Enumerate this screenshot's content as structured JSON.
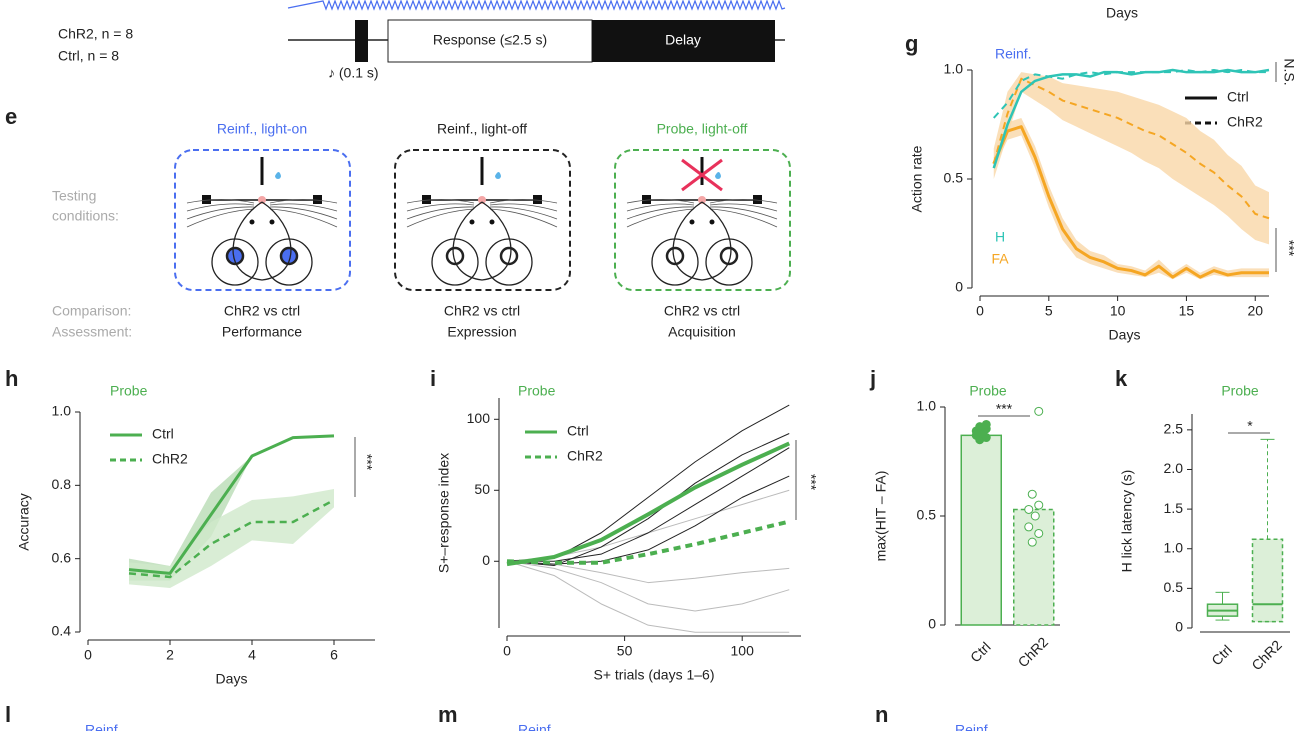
{
  "header": {
    "groups": [
      "ChR2, n = 8",
      "Ctrl, n = 8"
    ],
    "response": "Response (≤2.5 s)",
    "delay": "Delay",
    "tone": "♪ (0.1 s)",
    "days": "Days"
  },
  "panel_e": {
    "label": "e",
    "testing": [
      "Testing",
      "conditions:"
    ],
    "comparison": "Comparison:",
    "assessment": "Assessment:",
    "conditions": [
      {
        "title": "Reinf., light-on",
        "color": "#4a6ef0",
        "comparison": "ChR2 vs ctrl",
        "assessment": "Performance",
        "light_on": true,
        "spout_removed": false
      },
      {
        "title": "Reinf., light-off",
        "color": "#222222",
        "comparison": "ChR2 vs ctrl",
        "assessment": "Expression",
        "light_on": false,
        "spout_removed": false
      },
      {
        "title": "Probe, light-off",
        "color": "#4caf50",
        "comparison": "ChR2 vs ctrl",
        "assessment": "Acquisition",
        "light_on": false,
        "spout_removed": true
      }
    ]
  },
  "bottom_panels": [
    {
      "label": "l",
      "title": "Reinf."
    },
    {
      "label": "m",
      "title": "Reinf."
    },
    {
      "label": "n",
      "title": "Reinf."
    }
  ],
  "chart_data": [
    {
      "type": "line",
      "panel": "g",
      "title": "Reinf.",
      "title_color": "#4a6ef0",
      "xlabel": "Days",
      "ylabel": "Action rate",
      "x": [
        1,
        2,
        3,
        4,
        5,
        6,
        7,
        8,
        9,
        10,
        11,
        12,
        13,
        14,
        15,
        16,
        17,
        18,
        19,
        20,
        21
      ],
      "xlim": [
        0,
        21
      ],
      "ylim": [
        0,
        1
      ],
      "xticks": [
        0,
        5,
        10,
        15,
        20
      ],
      "yticks": [
        0,
        0.5,
        {
          "value": 1,
          "label": "1.0"
        }
      ],
      "legend": [
        {
          "label": "Ctrl",
          "color": "#111111",
          "dashed": false
        },
        {
          "label": "ChR2",
          "color": "#111111",
          "dashed": true
        }
      ],
      "annotations": [
        {
          "text": "H",
          "color": "#2ec4b6"
        },
        {
          "text": "FA",
          "color": "#f5a623"
        },
        {
          "text": "N.S.",
          "color": "#222222"
        },
        {
          "text": "***",
          "color": "#222222"
        }
      ],
      "series": [
        {
          "color": "#f5a623",
          "dashed": false,
          "line_width": 3,
          "band_color": "#f9d7a8",
          "values": [
            0.57,
            0.72,
            0.74,
            0.6,
            0.42,
            0.27,
            0.18,
            0.14,
            0.12,
            0.09,
            0.08,
            0.06,
            0.1,
            0.05,
            0.09,
            0.05,
            0.08,
            0.06,
            0.07,
            0.07,
            0.07
          ],
          "lower": [
            0.55,
            0.68,
            0.7,
            0.55,
            0.37,
            0.22,
            0.14,
            0.11,
            0.09,
            0.07,
            0.06,
            0.05,
            0.07,
            0.04,
            0.07,
            0.04,
            0.06,
            0.05,
            0.05,
            0.05,
            0.05
          ],
          "upper": [
            0.6,
            0.76,
            0.78,
            0.65,
            0.47,
            0.32,
            0.22,
            0.17,
            0.15,
            0.11,
            0.1,
            0.08,
            0.13,
            0.07,
            0.11,
            0.07,
            0.1,
            0.08,
            0.09,
            0.09,
            0.09
          ]
        },
        {
          "color": "#f5a623",
          "dashed": true,
          "line_width": 2,
          "band_color": "#f9d7a8",
          "values": [
            0.57,
            0.8,
            0.96,
            0.93,
            0.9,
            0.86,
            0.84,
            0.82,
            0.8,
            0.78,
            0.75,
            0.72,
            0.7,
            0.66,
            0.62,
            0.57,
            0.53,
            0.47,
            0.42,
            0.34,
            0.32
          ],
          "lower": [
            0.5,
            0.7,
            0.9,
            0.86,
            0.82,
            0.77,
            0.74,
            0.71,
            0.68,
            0.65,
            0.62,
            0.58,
            0.55,
            0.5,
            0.46,
            0.42,
            0.38,
            0.33,
            0.27,
            0.22,
            0.2
          ],
          "upper": [
            0.64,
            0.9,
            0.99,
            0.98,
            0.97,
            0.94,
            0.93,
            0.92,
            0.91,
            0.9,
            0.88,
            0.86,
            0.84,
            0.81,
            0.78,
            0.72,
            0.68,
            0.61,
            0.56,
            0.47,
            0.44
          ]
        },
        {
          "color": "#2ec4b6",
          "dashed": false,
          "line_width": 2.5,
          "values": [
            0.55,
            0.75,
            0.9,
            0.95,
            0.97,
            0.98,
            0.98,
            0.97,
            0.99,
            0.99,
            0.98,
            0.99,
            0.99,
            1,
            0.99,
            0.99,
            0.99,
            1,
            0.99,
            0.99,
            1
          ]
        },
        {
          "color": "#2ec4b6",
          "dashed": true,
          "line_width": 2,
          "values": [
            0.78,
            0.85,
            0.95,
            0.98,
            0.97,
            0.96,
            0.98,
            0.99,
            0.98,
            0.99,
            0.99,
            0.99,
            0.99,
            0.99,
            1,
            0.99,
            1,
            0.99,
            1,
            0.99,
            0.99
          ]
        }
      ]
    },
    {
      "type": "line",
      "panel": "h",
      "title": "Probe",
      "title_color": "#4caf50",
      "xlabel": "Days",
      "ylabel": "Accuracy",
      "x": [
        1,
        2,
        3,
        4,
        5,
        6
      ],
      "xlim": [
        0,
        7
      ],
      "ylim": [
        0.4,
        1
      ],
      "xticks": [
        0,
        2,
        4,
        6
      ],
      "yticks": [
        0.4,
        0.6,
        0.8,
        {
          "value": 1,
          "label": "1.0"
        }
      ],
      "legend": [
        {
          "label": "Ctrl",
          "color": "#4caf50",
          "dashed": false
        },
        {
          "label": "ChR2",
          "color": "#4caf50",
          "dashed": true
        }
      ],
      "annotations": [
        {
          "text": "***",
          "color": "#222222"
        }
      ],
      "series": [
        {
          "color": "#4caf50",
          "dashed": false,
          "line_width": 3,
          "band_color": "#b9dcb5",
          "values": [
            0.57,
            0.56,
            0.72,
            0.88,
            0.93,
            0.935
          ],
          "lower": [
            0.54,
            0.54,
            0.66,
            0.88,
            0.93,
            0.935
          ],
          "upper": [
            0.6,
            0.58,
            0.78,
            0.88,
            0.93,
            0.935
          ]
        },
        {
          "color": "#4caf50",
          "dashed": true,
          "line_width": 2.5,
          "band_color": "#cfe8cb",
          "values": [
            0.56,
            0.55,
            0.64,
            0.7,
            0.7,
            0.76
          ],
          "lower": [
            0.53,
            0.52,
            0.58,
            0.65,
            0.64,
            0.74
          ],
          "upper": [
            0.59,
            0.58,
            0.7,
            0.76,
            0.77,
            0.79
          ]
        }
      ]
    },
    {
      "type": "line",
      "panel": "i",
      "title": "Probe",
      "title_color": "#4caf50",
      "xlabel": "S+ trials (days 1–6)",
      "ylabel": "S+–response index",
      "x": [
        0,
        20,
        40,
        60,
        80,
        100,
        120
      ],
      "xlim": [
        0,
        125
      ],
      "ylim": [
        -47,
        115
      ],
      "xticks": [
        0,
        50,
        100
      ],
      "yticks": [
        0,
        50,
        100
      ],
      "legend": [
        {
          "label": "Ctrl",
          "color": "#4caf50",
          "dashed": false
        },
        {
          "label": "ChR2",
          "color": "#4caf50",
          "dashed": true
        }
      ],
      "annotations": [
        {
          "text": "***",
          "color": "#222222"
        }
      ],
      "series": [
        {
          "color": "#bbbbbb",
          "dashed": false,
          "line_width": 1,
          "values": [
            0,
            -10,
            -30,
            -45,
            -50,
            -50,
            -50
          ]
        },
        {
          "color": "#bbbbbb",
          "dashed": false,
          "line_width": 1,
          "values": [
            0,
            -5,
            -15,
            -30,
            -35,
            -30,
            -20
          ]
        },
        {
          "color": "#bbbbbb",
          "dashed": false,
          "line_width": 1,
          "values": [
            0,
            -2,
            -8,
            -15,
            -12,
            -8,
            -5
          ]
        },
        {
          "color": "#bbbbbb",
          "dashed": false,
          "line_width": 1,
          "values": [
            0,
            3,
            10,
            20,
            30,
            40,
            50
          ]
        },
        {
          "color": "#222222",
          "dashed": false,
          "line_width": 1,
          "values": [
            0,
            2,
            20,
            45,
            70,
            92,
            110
          ]
        },
        {
          "color": "#222222",
          "dashed": false,
          "line_width": 1,
          "values": [
            0,
            -3,
            10,
            30,
            55,
            75,
            90
          ]
        },
        {
          "color": "#222222",
          "dashed": false,
          "line_width": 1,
          "values": [
            0,
            0,
            5,
            20,
            40,
            60,
            80
          ]
        },
        {
          "color": "#222222",
          "dashed": false,
          "line_width": 1,
          "values": [
            0,
            -2,
            0,
            8,
            25,
            45,
            60
          ]
        },
        {
          "color": "#4caf50",
          "dashed": false,
          "line_width": 4,
          "values": [
            -2,
            3,
            15,
            33,
            52,
            68,
            83
          ]
        },
        {
          "color": "#4caf50",
          "dashed": true,
          "line_width": 4,
          "values": [
            0,
            -1,
            -1,
            5,
            12,
            20,
            28
          ]
        }
      ]
    },
    {
      "type": "bar",
      "panel": "j",
      "title": "Probe",
      "title_color": "#4caf50",
      "ylabel": "max(HIT – FA)",
      "categories": [
        "Ctrl",
        "ChR2"
      ],
      "values": [
        0.87,
        0.53
      ],
      "color": "#4caf50",
      "fill": "#dcefd8",
      "dashed": [
        false,
        true
      ],
      "points": [
        [
          0.85,
          0.86,
          0.87,
          0.88,
          0.89,
          0.9,
          0.91,
          0.92
        ],
        [
          0.38,
          0.42,
          0.45,
          0.5,
          0.53,
          0.55,
          0.6,
          0.98
        ]
      ],
      "ylim": [
        0,
        1
      ],
      "yticks": [
        0,
        0.5,
        {
          "value": 1,
          "label": "1.0"
        }
      ],
      "annotations": [
        {
          "text": "***",
          "color": "#222222"
        }
      ]
    },
    {
      "type": "box",
      "panel": "k",
      "title": "Probe",
      "title_color": "#4caf50",
      "ylabel": "H lick latency (s)",
      "categories": [
        "Ctrl",
        "ChR2"
      ],
      "color": "#4caf50",
      "fill": "#dcefd8",
      "dashed": [
        false,
        true
      ],
      "boxes": [
        {
          "min": 0.1,
          "q1": 0.15,
          "median": 0.22,
          "q3": 0.3,
          "max": 0.45
        },
        {
          "min": 0.08,
          "q1": 0.08,
          "median": 0.3,
          "q3": 1.12,
          "max": 2.38
        }
      ],
      "ylim": [
        0,
        2.7
      ],
      "yticks": [
        0,
        0.5,
        {
          "value": 1,
          "label": "1.0"
        },
        1.5,
        {
          "value": 2,
          "label": "2.0"
        },
        2.5
      ],
      "annotations": [
        {
          "text": "*",
          "color": "#222222"
        }
      ]
    }
  ]
}
